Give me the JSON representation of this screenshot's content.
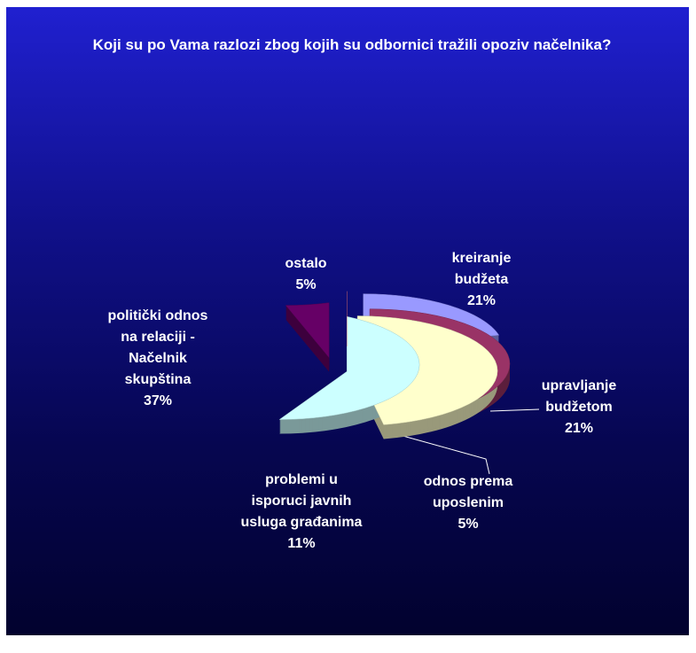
{
  "chart_data": {
    "type": "pie",
    "title": "Koji su po Vama razlozi zbog kojih su odbornici tražili opoziv načelnika?",
    "categories": [
      "kreiranje budžeta",
      "upravljanje budžetom",
      "odnos prema uposlenim",
      "problemi u isporuci javnih usluga građanima",
      "politički odnos na relaciji -Načelnik skupština",
      "ostalo"
    ],
    "values": [
      21,
      21,
      5,
      11,
      37,
      5
    ],
    "value_labels": [
      "21%",
      "21%",
      "5%",
      "11%",
      "37%",
      "5%"
    ],
    "colors": [
      "#9999ff",
      "#993366",
      "#ffffcc",
      "#ccffff",
      "#660066",
      "#ff8080"
    ]
  }
}
